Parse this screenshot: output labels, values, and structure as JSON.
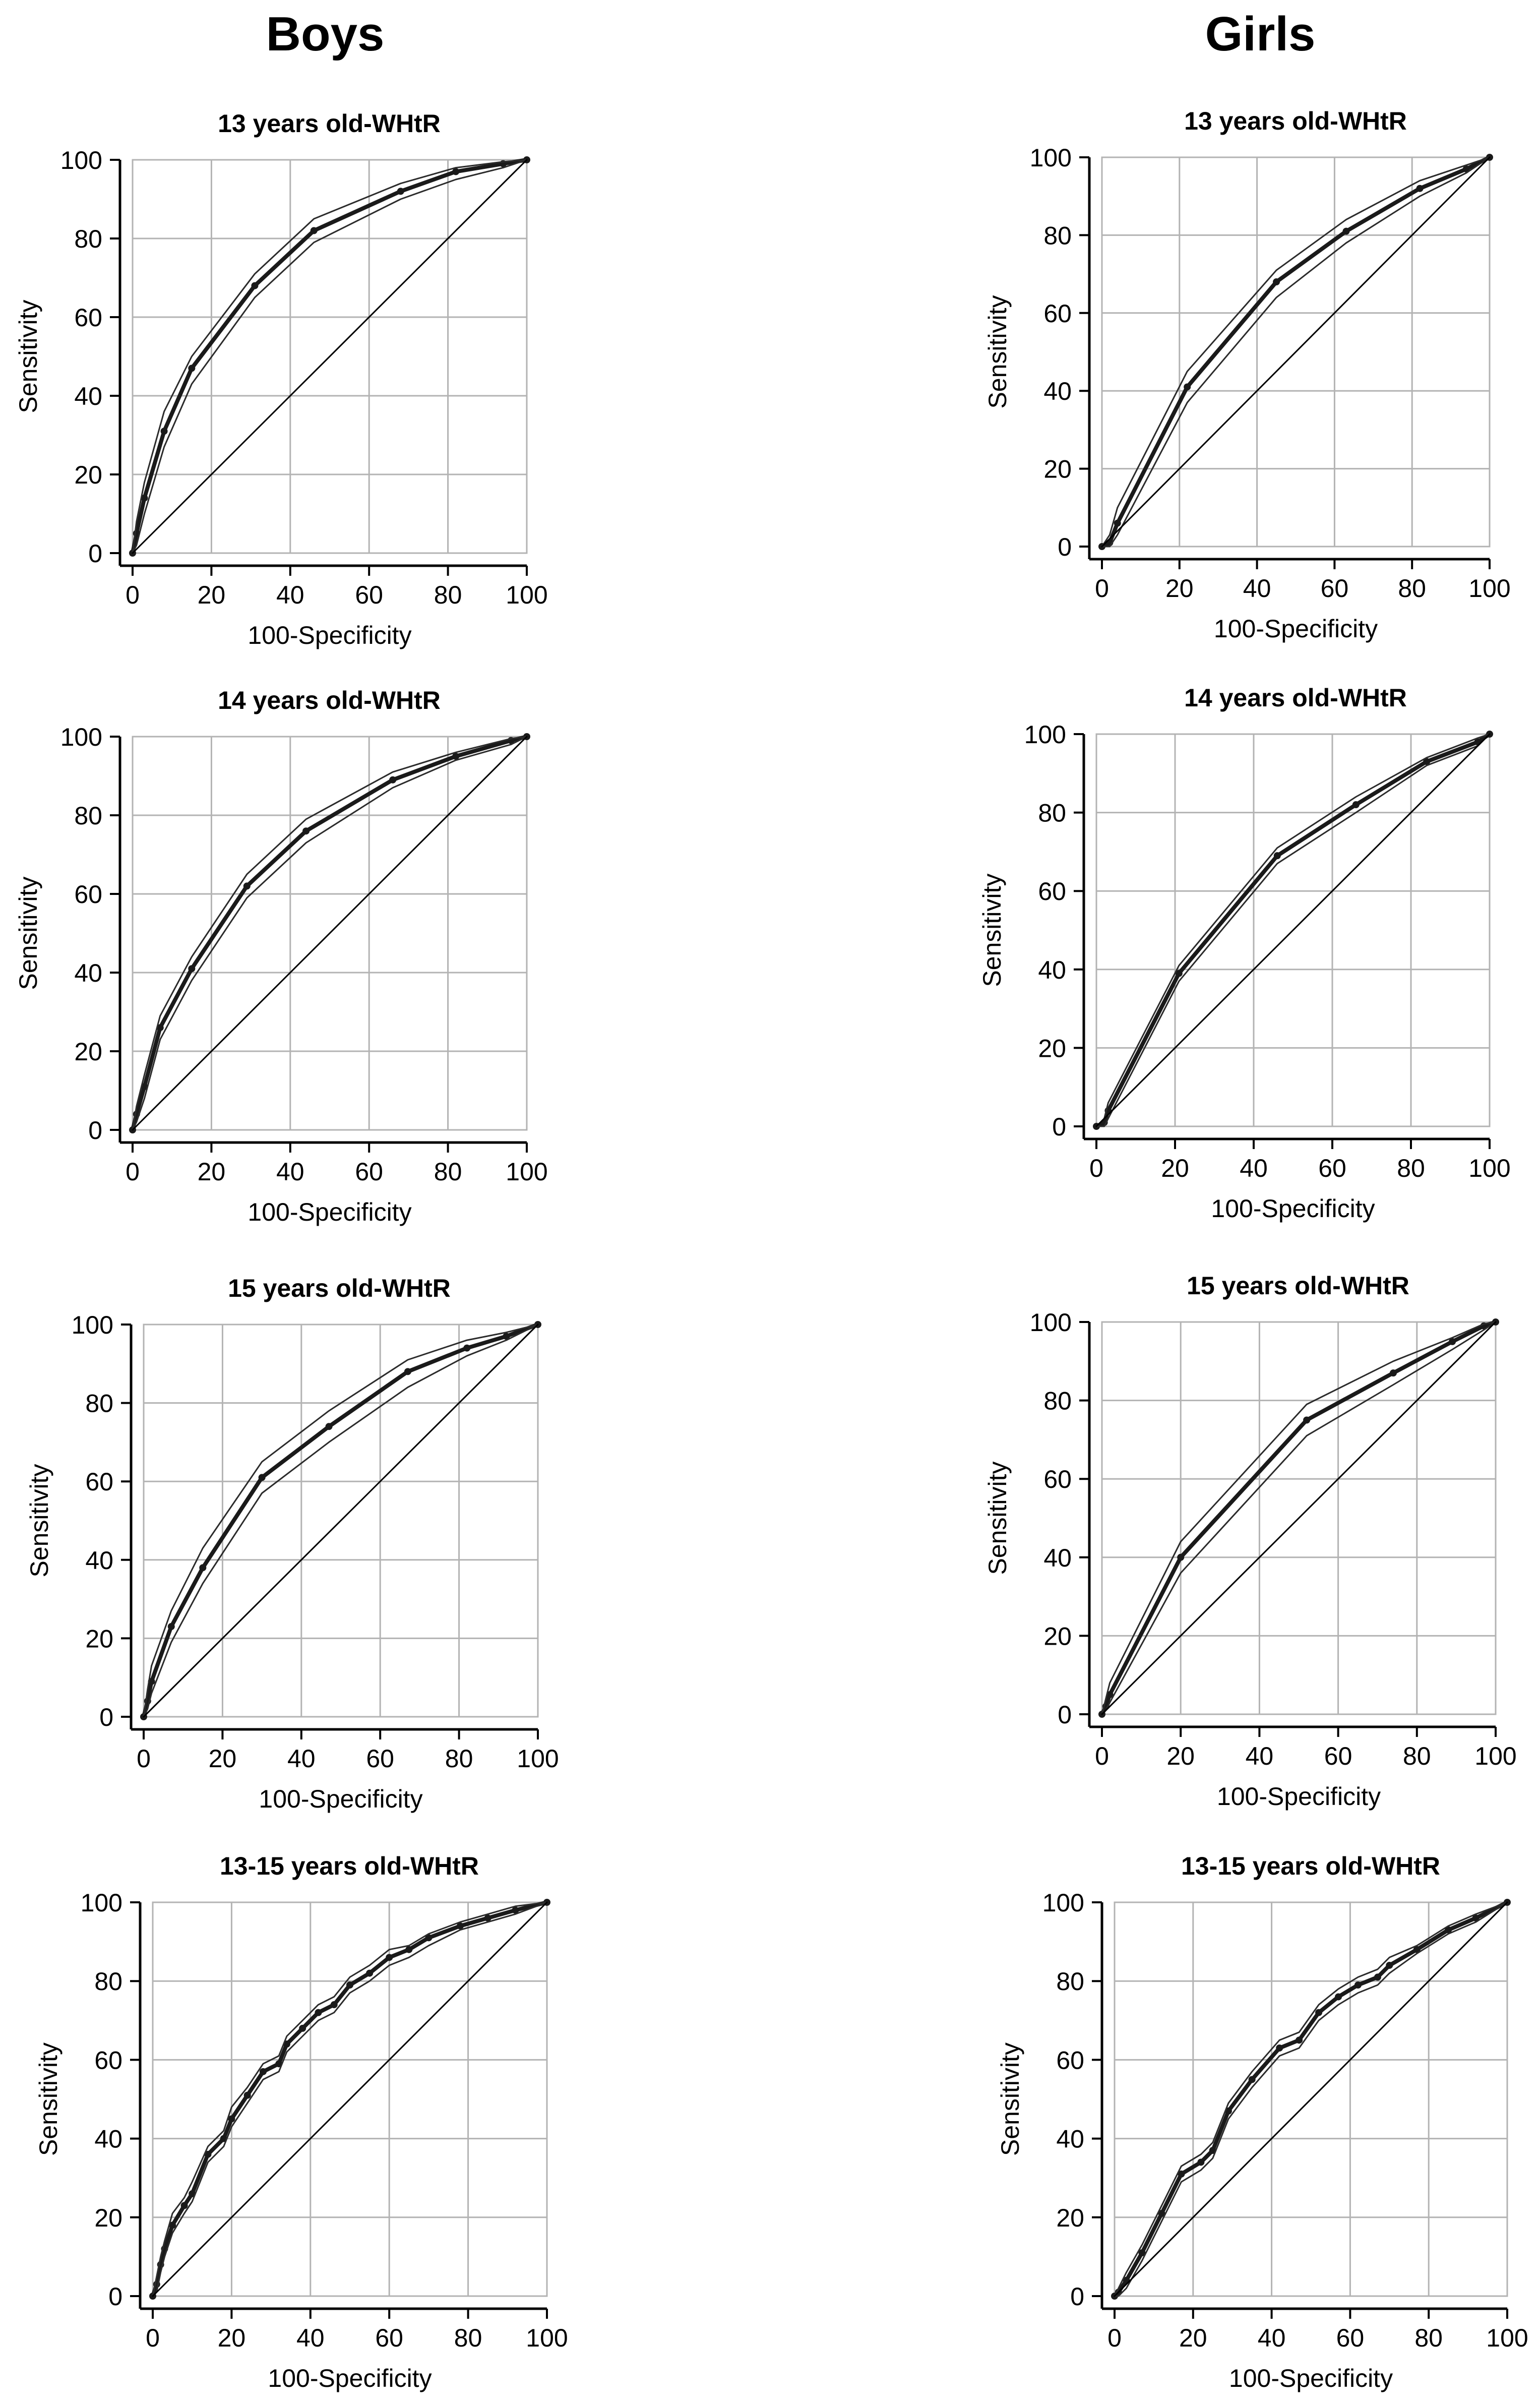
{
  "columns": [
    {
      "title": "Boys"
    },
    {
      "title": "Girls"
    }
  ],
  "colors": {
    "background": "#ffffff",
    "axis": "#000000",
    "grid": "#b3b3b3",
    "curve": "#1a1a1a",
    "ci": "#2b2b2b"
  },
  "chart_data": [
    {
      "type": "line",
      "group": "Boys",
      "title": "13 years old-WHtR",
      "xlabel": "100-Specificity",
      "ylabel": "Sensitivity",
      "xlim": [
        0,
        100
      ],
      "ylim": [
        0,
        100
      ],
      "xticks": [
        0,
        20,
        40,
        60,
        80,
        100
      ],
      "yticks": [
        0,
        20,
        40,
        60,
        80,
        100
      ],
      "grid": true,
      "series": [
        {
          "name": "ROC",
          "x": [
            0,
            1,
            3,
            8,
            15,
            31,
            46,
            68,
            82,
            94,
            100
          ],
          "y": [
            0,
            5,
            14,
            31,
            47,
            68,
            82,
            92,
            97,
            99,
            100
          ]
        },
        {
          "name": "CI upper",
          "x": [
            0,
            1,
            3,
            8,
            15,
            31,
            46,
            68,
            82,
            94,
            100
          ],
          "y": [
            0,
            8,
            18,
            36,
            50,
            71,
            85,
            94,
            98,
            99.5,
            100
          ]
        },
        {
          "name": "CI lower",
          "x": [
            0,
            1,
            3,
            8,
            15,
            31,
            46,
            68,
            82,
            94,
            100
          ],
          "y": [
            0,
            2,
            10,
            27,
            43,
            65,
            79,
            90,
            95,
            98,
            100
          ]
        },
        {
          "name": "Reference",
          "x": [
            0,
            100
          ],
          "y": [
            0,
            100
          ]
        }
      ]
    },
    {
      "type": "line",
      "group": "Girls",
      "title": "13 years old-WHtR",
      "xlabel": "100-Specificity",
      "ylabel": "Sensitivity",
      "xlim": [
        0,
        100
      ],
      "ylim": [
        0,
        100
      ],
      "xticks": [
        0,
        20,
        40,
        60,
        80,
        100
      ],
      "yticks": [
        0,
        20,
        40,
        60,
        80,
        100
      ],
      "grid": true,
      "series": [
        {
          "name": "ROC",
          "x": [
            0,
            2,
            4,
            22,
            45,
            63,
            82,
            94,
            100
          ],
          "y": [
            0,
            1,
            6,
            41,
            68,
            81,
            92,
            97,
            100
          ]
        },
        {
          "name": "CI upper",
          "x": [
            0,
            2,
            4,
            22,
            45,
            63,
            82,
            94,
            100
          ],
          "y": [
            0,
            3,
            10,
            45,
            71,
            84,
            94,
            98,
            100
          ]
        },
        {
          "name": "CI lower",
          "x": [
            0,
            2,
            4,
            22,
            45,
            63,
            82,
            94,
            100
          ],
          "y": [
            0,
            0,
            3,
            37,
            64,
            78,
            90,
            96,
            100
          ]
        },
        {
          "name": "Reference",
          "x": [
            0,
            100
          ],
          "y": [
            0,
            100
          ]
        }
      ]
    },
    {
      "type": "line",
      "group": "Boys",
      "title": "14 years old-WHtR",
      "xlabel": "100-Specificity",
      "ylabel": "Sensitivity",
      "xlim": [
        0,
        100
      ],
      "ylim": [
        0,
        100
      ],
      "xticks": [
        0,
        20,
        40,
        60,
        80,
        100
      ],
      "yticks": [
        0,
        20,
        40,
        60,
        80,
        100
      ],
      "grid": true,
      "series": [
        {
          "name": "ROC",
          "x": [
            0,
            1,
            3,
            7,
            15,
            29,
            44,
            66,
            82,
            96,
            100
          ],
          "y": [
            0,
            4,
            11,
            26,
            41,
            62,
            76,
            89,
            95,
            99,
            100
          ]
        },
        {
          "name": "CI upper",
          "x": [
            0,
            1,
            3,
            7,
            15,
            29,
            44,
            66,
            82,
            96,
            100
          ],
          "y": [
            0,
            6,
            14,
            29,
            44,
            65,
            79,
            91,
            96,
            99.5,
            100
          ]
        },
        {
          "name": "CI lower",
          "x": [
            0,
            1,
            3,
            7,
            15,
            29,
            44,
            66,
            82,
            96,
            100
          ],
          "y": [
            0,
            2,
            8,
            23,
            38,
            59,
            73,
            87,
            94,
            98,
            100
          ]
        },
        {
          "name": "Reference",
          "x": [
            0,
            100
          ],
          "y": [
            0,
            100
          ]
        }
      ]
    },
    {
      "type": "line",
      "group": "Girls",
      "title": "14 years old-WHtR",
      "xlabel": "100-Specificity",
      "ylabel": "Sensitivity",
      "xlim": [
        0,
        100
      ],
      "ylim": [
        0,
        100
      ],
      "xticks": [
        0,
        20,
        40,
        60,
        80,
        100
      ],
      "yticks": [
        0,
        20,
        40,
        60,
        80,
        100
      ],
      "grid": true,
      "series": [
        {
          "name": "ROC",
          "x": [
            0,
            2,
            3,
            21,
            46,
            66,
            84,
            97,
            100
          ],
          "y": [
            0,
            1,
            4,
            39,
            69,
            82,
            93,
            98,
            100
          ]
        },
        {
          "name": "CI upper",
          "x": [
            0,
            2,
            3,
            21,
            46,
            66,
            84,
            97,
            100
          ],
          "y": [
            0,
            2,
            6,
            41,
            71,
            84,
            94,
            99,
            100
          ]
        },
        {
          "name": "CI lower",
          "x": [
            0,
            2,
            3,
            21,
            46,
            66,
            84,
            97,
            100
          ],
          "y": [
            0,
            0,
            2,
            37,
            67,
            80,
            92,
            97,
            100
          ]
        },
        {
          "name": "Reference",
          "x": [
            0,
            100
          ],
          "y": [
            0,
            100
          ]
        }
      ]
    },
    {
      "type": "line",
      "group": "Boys",
      "title": "15 years old-WHtR",
      "xlabel": "100-Specificity",
      "ylabel": "Sensitivity",
      "xlim": [
        0,
        100
      ],
      "ylim": [
        0,
        100
      ],
      "xticks": [
        0,
        20,
        40,
        60,
        80,
        100
      ],
      "yticks": [
        0,
        20,
        40,
        60,
        80,
        100
      ],
      "grid": true,
      "series": [
        {
          "name": "ROC",
          "x": [
            0,
            1,
            2,
            7,
            15,
            30,
            47,
            67,
            82,
            92,
            100
          ],
          "y": [
            0,
            4,
            9,
            23,
            38,
            61,
            74,
            88,
            94,
            97,
            100
          ]
        },
        {
          "name": "CI upper",
          "x": [
            0,
            1,
            2,
            7,
            15,
            30,
            47,
            67,
            82,
            92,
            100
          ],
          "y": [
            0,
            7,
            13,
            27,
            43,
            65,
            78,
            91,
            96,
            98,
            100
          ]
        },
        {
          "name": "CI lower",
          "x": [
            0,
            1,
            2,
            7,
            15,
            30,
            47,
            67,
            82,
            92,
            100
          ],
          "y": [
            0,
            2,
            6,
            19,
            34,
            57,
            70,
            84,
            92,
            96,
            100
          ]
        },
        {
          "name": "Reference",
          "x": [
            0,
            100
          ],
          "y": [
            0,
            100
          ]
        }
      ]
    },
    {
      "type": "line",
      "group": "Girls",
      "title": "15 years old-WHtR",
      "xlabel": "100-Specificity",
      "ylabel": "Sensitivity",
      "xlim": [
        0,
        100
      ],
      "ylim": [
        0,
        100
      ],
      "xticks": [
        0,
        20,
        40,
        60,
        80,
        100
      ],
      "yticks": [
        0,
        20,
        40,
        60,
        80,
        100
      ],
      "grid": true,
      "series": [
        {
          "name": "ROC",
          "x": [
            0,
            1,
            2,
            20,
            52,
            74,
            89,
            97,
            100
          ],
          "y": [
            0,
            2,
            5,
            40,
            75,
            87,
            95,
            99,
            100
          ]
        },
        {
          "name": "CI upper",
          "x": [
            0,
            1,
            2,
            20,
            52,
            74,
            89,
            97,
            100
          ],
          "y": [
            0,
            4,
            8,
            44,
            79,
            90,
            96,
            99.5,
            100
          ]
        },
        {
          "name": "CI lower",
          "x": [
            0,
            1,
            2,
            20,
            52,
            74,
            89,
            97,
            100
          ],
          "y": [
            0,
            1,
            3,
            36,
            71,
            84,
            93,
            98,
            100
          ]
        },
        {
          "name": "Reference",
          "x": [
            0,
            100
          ],
          "y": [
            0,
            100
          ]
        }
      ]
    },
    {
      "type": "line",
      "group": "Boys",
      "title": "13-15 years old-WHtR",
      "xlabel": "100-Specificity",
      "ylabel": "Sensitivity",
      "xlim": [
        0,
        100
      ],
      "ylim": [
        0,
        100
      ],
      "xticks": [
        0,
        20,
        40,
        60,
        80,
        100
      ],
      "yticks": [
        0,
        20,
        40,
        60,
        80,
        100
      ],
      "grid": true,
      "series": [
        {
          "name": "ROC",
          "x": [
            0,
            1,
            2,
            3,
            5,
            8,
            10,
            14,
            18,
            20,
            24,
            28,
            32,
            34,
            38,
            42,
            46,
            50,
            55,
            60,
            65,
            70,
            78,
            85,
            92,
            100
          ],
          "y": [
            0,
            3,
            8,
            12,
            18,
            23,
            26,
            36,
            40,
            45,
            51,
            57,
            59,
            64,
            68,
            72,
            74,
            79,
            82,
            86,
            88,
            91,
            94,
            96,
            98,
            100
          ]
        },
        {
          "name": "CI upper",
          "x": [
            0,
            1,
            2,
            3,
            5,
            8,
            10,
            14,
            18,
            20,
            24,
            28,
            32,
            34,
            38,
            42,
            46,
            50,
            55,
            60,
            65,
            70,
            78,
            85,
            92,
            100
          ],
          "y": [
            0,
            5,
            10,
            14,
            21,
            25,
            29,
            38,
            42,
            48,
            53,
            59,
            61,
            66,
            70,
            74,
            76,
            81,
            84,
            88,
            89,
            92,
            95,
            97,
            99,
            100
          ]
        },
        {
          "name": "CI lower",
          "x": [
            0,
            1,
            2,
            3,
            5,
            8,
            10,
            14,
            18,
            20,
            24,
            28,
            32,
            34,
            38,
            42,
            46,
            50,
            55,
            60,
            65,
            70,
            78,
            85,
            92,
            100
          ],
          "y": [
            0,
            1,
            6,
            10,
            16,
            21,
            24,
            34,
            38,
            43,
            49,
            55,
            57,
            62,
            66,
            70,
            72,
            77,
            80,
            84,
            86,
            89,
            93,
            95,
            97,
            100
          ]
        },
        {
          "name": "Reference",
          "x": [
            0,
            100
          ],
          "y": [
            0,
            100
          ]
        }
      ]
    },
    {
      "type": "line",
      "group": "Girls",
      "title": "13-15 years old-WHtR",
      "xlabel": "100-Specificity",
      "ylabel": "Sensitivity",
      "xlim": [
        0,
        100
      ],
      "ylim": [
        0,
        100
      ],
      "xticks": [
        0,
        20,
        40,
        60,
        80,
        100
      ],
      "yticks": [
        0,
        20,
        40,
        60,
        80,
        100
      ],
      "grid": true,
      "series": [
        {
          "name": "ROC",
          "x": [
            0,
            1,
            3,
            7,
            12,
            17,
            22,
            25,
            29,
            35,
            42,
            47,
            52,
            57,
            62,
            67,
            70,
            77,
            85,
            92,
            100
          ],
          "y": [
            0,
            1,
            4,
            11,
            21,
            31,
            34,
            37,
            47,
            55,
            63,
            65,
            72,
            76,
            79,
            81,
            84,
            88,
            93,
            96,
            100
          ]
        },
        {
          "name": "CI upper",
          "x": [
            0,
            1,
            3,
            7,
            12,
            17,
            22,
            25,
            29,
            35,
            42,
            47,
            52,
            57,
            62,
            67,
            70,
            77,
            85,
            92,
            100
          ],
          "y": [
            0,
            2,
            6,
            13,
            23,
            33,
            36,
            39,
            49,
            57,
            65,
            67,
            74,
            78,
            81,
            83,
            86,
            89,
            94,
            97,
            100
          ]
        },
        {
          "name": "CI lower",
          "x": [
            0,
            1,
            3,
            7,
            12,
            17,
            22,
            25,
            29,
            35,
            42,
            47,
            52,
            57,
            62,
            67,
            70,
            77,
            85,
            92,
            100
          ],
          "y": [
            0,
            0,
            2,
            9,
            19,
            29,
            32,
            35,
            45,
            53,
            61,
            63,
            70,
            74,
            77,
            79,
            82,
            87,
            92,
            95,
            100
          ]
        },
        {
          "name": "Reference",
          "x": [
            0,
            100
          ],
          "y": [
            0,
            100
          ]
        }
      ]
    }
  ]
}
